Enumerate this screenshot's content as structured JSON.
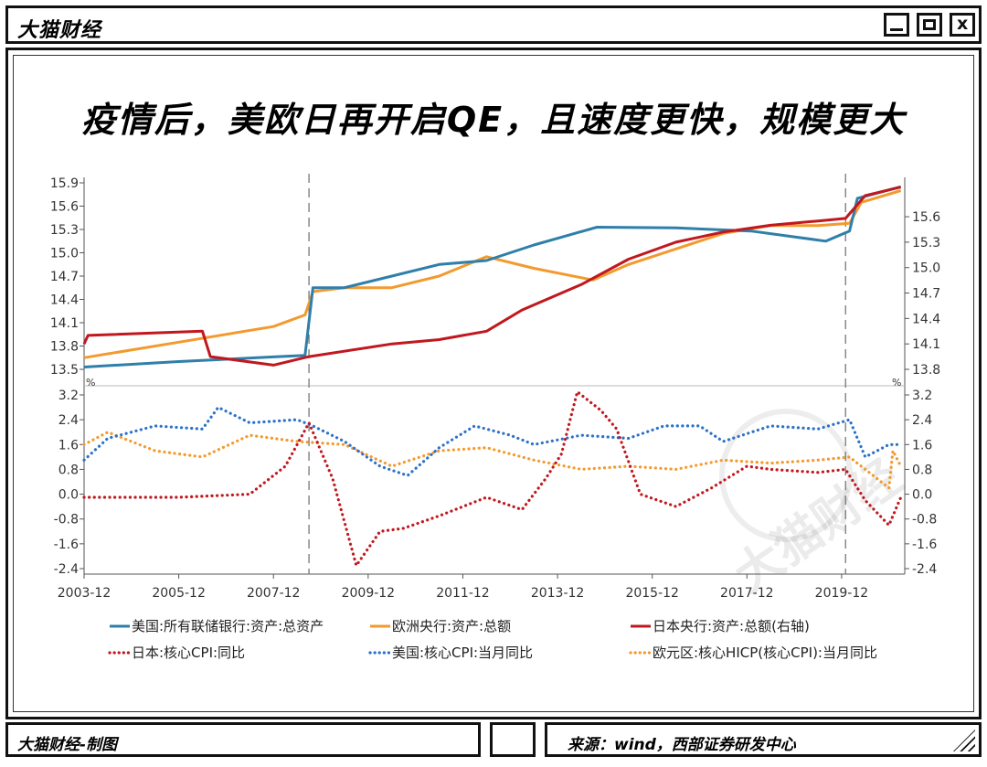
{
  "window": {
    "title": "大猫财经",
    "buttons": {
      "minimize": "_",
      "maximize": "□",
      "close": "x"
    }
  },
  "headline": "疫情后，美欧日再开启QE，且速度更快，规模更大",
  "watermark": "大猫财经",
  "footer": {
    "left": "大猫财经-制图",
    "right": "来源：wind，西部证券研发中心"
  },
  "colors": {
    "fed": "#2E7FAA",
    "ecb": "#F39A2E",
    "boj": "#C0181E",
    "jp_cpi": "#C0181E",
    "us_cpi": "#2B72C8",
    "ea_cpi": "#F39A2E"
  },
  "chart_data": [
    {
      "type": "line",
      "panel": "top",
      "x_ticks": [
        "2003-12",
        "2005-12",
        "2007-12",
        "2009-12",
        "2011-12",
        "2013-12",
        "2015-12",
        "2017-12",
        "2019-12"
      ],
      "y_left_ticks": [
        "15.9",
        "15.6",
        "15.3",
        "15.0",
        "14.7",
        "14.4",
        "14.1",
        "13.8",
        "13.5"
      ],
      "y_right_ticks": [
        "15.6",
        "15.3",
        "15.0",
        "14.7",
        "14.4",
        "14.1",
        "13.8"
      ],
      "ylim_left": [
        13.5,
        15.9
      ],
      "ylim_right": [
        13.8,
        16.0
      ],
      "vlines": [
        "2008-09",
        "2020-01"
      ],
      "series": [
        {
          "name": "美国:所有联储银行:资产:总资产",
          "axis": "left",
          "color": "#2E7FAA",
          "x": [
            "2003-12",
            "2005-12",
            "2007-12",
            "2008-08",
            "2008-10",
            "2009-06",
            "2010-06",
            "2011-06",
            "2012-06",
            "2013-06",
            "2014-10",
            "2016-06",
            "2018-01",
            "2019-08",
            "2020-02",
            "2020-04",
            "2021-03"
          ],
          "y": [
            13.53,
            13.6,
            13.66,
            13.68,
            14.55,
            14.55,
            14.7,
            14.85,
            14.9,
            15.1,
            15.33,
            15.32,
            15.28,
            15.15,
            15.28,
            15.7,
            15.85
          ]
        },
        {
          "name": "欧洲央行:资产:总额",
          "axis": "left",
          "color": "#F39A2E",
          "x": [
            "2003-12",
            "2005-12",
            "2007-12",
            "2008-08",
            "2008-10",
            "2009-06",
            "2010-06",
            "2011-06",
            "2012-06",
            "2013-06",
            "2014-09",
            "2015-06",
            "2016-06",
            "2017-06",
            "2018-06",
            "2019-06",
            "2020-02",
            "2020-05",
            "2021-03"
          ],
          "y": [
            13.65,
            13.85,
            14.05,
            14.2,
            14.5,
            14.55,
            14.55,
            14.7,
            14.95,
            14.8,
            14.65,
            14.85,
            15.05,
            15.25,
            15.35,
            15.35,
            15.38,
            15.65,
            15.8
          ]
        },
        {
          "name": "日本央行:资产:总额(右轴)",
          "axis": "right",
          "color": "#C0181E",
          "x": [
            "2003-12",
            "2004-01",
            "2006-06",
            "2006-08",
            "2007-12",
            "2008-09",
            "2010-06",
            "2011-06",
            "2012-06",
            "2013-03",
            "2014-06",
            "2015-06",
            "2016-06",
            "2017-06",
            "2018-06",
            "2019-06",
            "2020-01",
            "2020-06",
            "2021-03"
          ],
          "y": [
            14.1,
            14.2,
            14.25,
            13.95,
            13.85,
            13.95,
            14.1,
            14.15,
            14.25,
            14.5,
            14.8,
            15.1,
            15.3,
            15.42,
            15.5,
            15.55,
            15.58,
            15.85,
            15.95
          ]
        }
      ]
    },
    {
      "type": "line",
      "panel": "bottom",
      "ylabel": "%",
      "x_ticks": [
        "2003-12",
        "2005-12",
        "2007-12",
        "2009-12",
        "2011-12",
        "2013-12",
        "2015-12",
        "2017-12",
        "2019-12"
      ],
      "y_ticks": [
        "3.2",
        "2.4",
        "1.6",
        "0.8",
        "0.0",
        "-0.8",
        "-1.6",
        "-2.4"
      ],
      "ylim": [
        -2.4,
        3.2
      ],
      "series": [
        {
          "name": "日本:核心CPI:同比",
          "color": "#C0181E",
          "style": "dotted",
          "x": [
            "2003-12",
            "2005-12",
            "2007-06",
            "2007-12",
            "2008-03",
            "2008-09",
            "2009-03",
            "2009-09",
            "2010-03",
            "2010-09",
            "2011-06",
            "2012-06",
            "2013-03",
            "2013-09",
            "2014-01",
            "2014-05",
            "2014-11",
            "2015-03",
            "2015-09",
            "2016-06",
            "2017-03",
            "2017-12",
            "2018-06",
            "2019-06",
            "2020-01",
            "2020-06",
            "2020-12",
            "2021-03"
          ],
          "y": [
            -0.1,
            -0.1,
            0.0,
            0.6,
            0.9,
            2.3,
            0.5,
            -2.3,
            -1.2,
            -1.1,
            -0.7,
            -0.1,
            -0.5,
            0.5,
            1.3,
            3.3,
            2.7,
            2.1,
            0.0,
            -0.4,
            0.2,
            0.9,
            0.8,
            0.7,
            0.8,
            -0.2,
            -1.0,
            -0.1
          ]
        },
        {
          "name": "美国:核心CPI:当月同比",
          "color": "#2B72C8",
          "style": "dotted",
          "x": [
            "2003-12",
            "2004-06",
            "2005-06",
            "2006-06",
            "2006-10",
            "2007-06",
            "2008-06",
            "2008-10",
            "2009-06",
            "2010-03",
            "2010-10",
            "2011-06",
            "2012-03",
            "2012-12",
            "2013-06",
            "2014-06",
            "2015-06",
            "2016-03",
            "2016-12",
            "2017-06",
            "2018-06",
            "2019-06",
            "2020-02",
            "2020-06",
            "2020-12",
            "2021-03"
          ],
          "y": [
            1.1,
            1.8,
            2.2,
            2.1,
            2.8,
            2.3,
            2.4,
            2.2,
            1.7,
            0.9,
            0.6,
            1.5,
            2.2,
            1.9,
            1.6,
            1.9,
            1.8,
            2.2,
            2.2,
            1.7,
            2.2,
            2.1,
            2.4,
            1.2,
            1.6,
            1.6
          ]
        },
        {
          "name": "欧元区:核心HICP(核心CPI):当月同比",
          "color": "#F39A2E",
          "style": "dotted",
          "x": [
            "2003-12",
            "2004-06",
            "2005-06",
            "2006-06",
            "2007-06",
            "2008-06",
            "2009-06",
            "2010-06",
            "2011-06",
            "2012-06",
            "2013-06",
            "2014-06",
            "2015-06",
            "2016-06",
            "2017-06",
            "2018-06",
            "2019-06",
            "2020-02",
            "2020-06",
            "2020-12",
            "2021-01",
            "2021-03"
          ],
          "y": [
            1.6,
            2.0,
            1.4,
            1.2,
            1.9,
            1.7,
            1.6,
            0.9,
            1.4,
            1.5,
            1.1,
            0.8,
            0.9,
            0.8,
            1.1,
            1.0,
            1.1,
            1.2,
            0.8,
            0.2,
            1.4,
            0.9
          ]
        }
      ]
    }
  ]
}
